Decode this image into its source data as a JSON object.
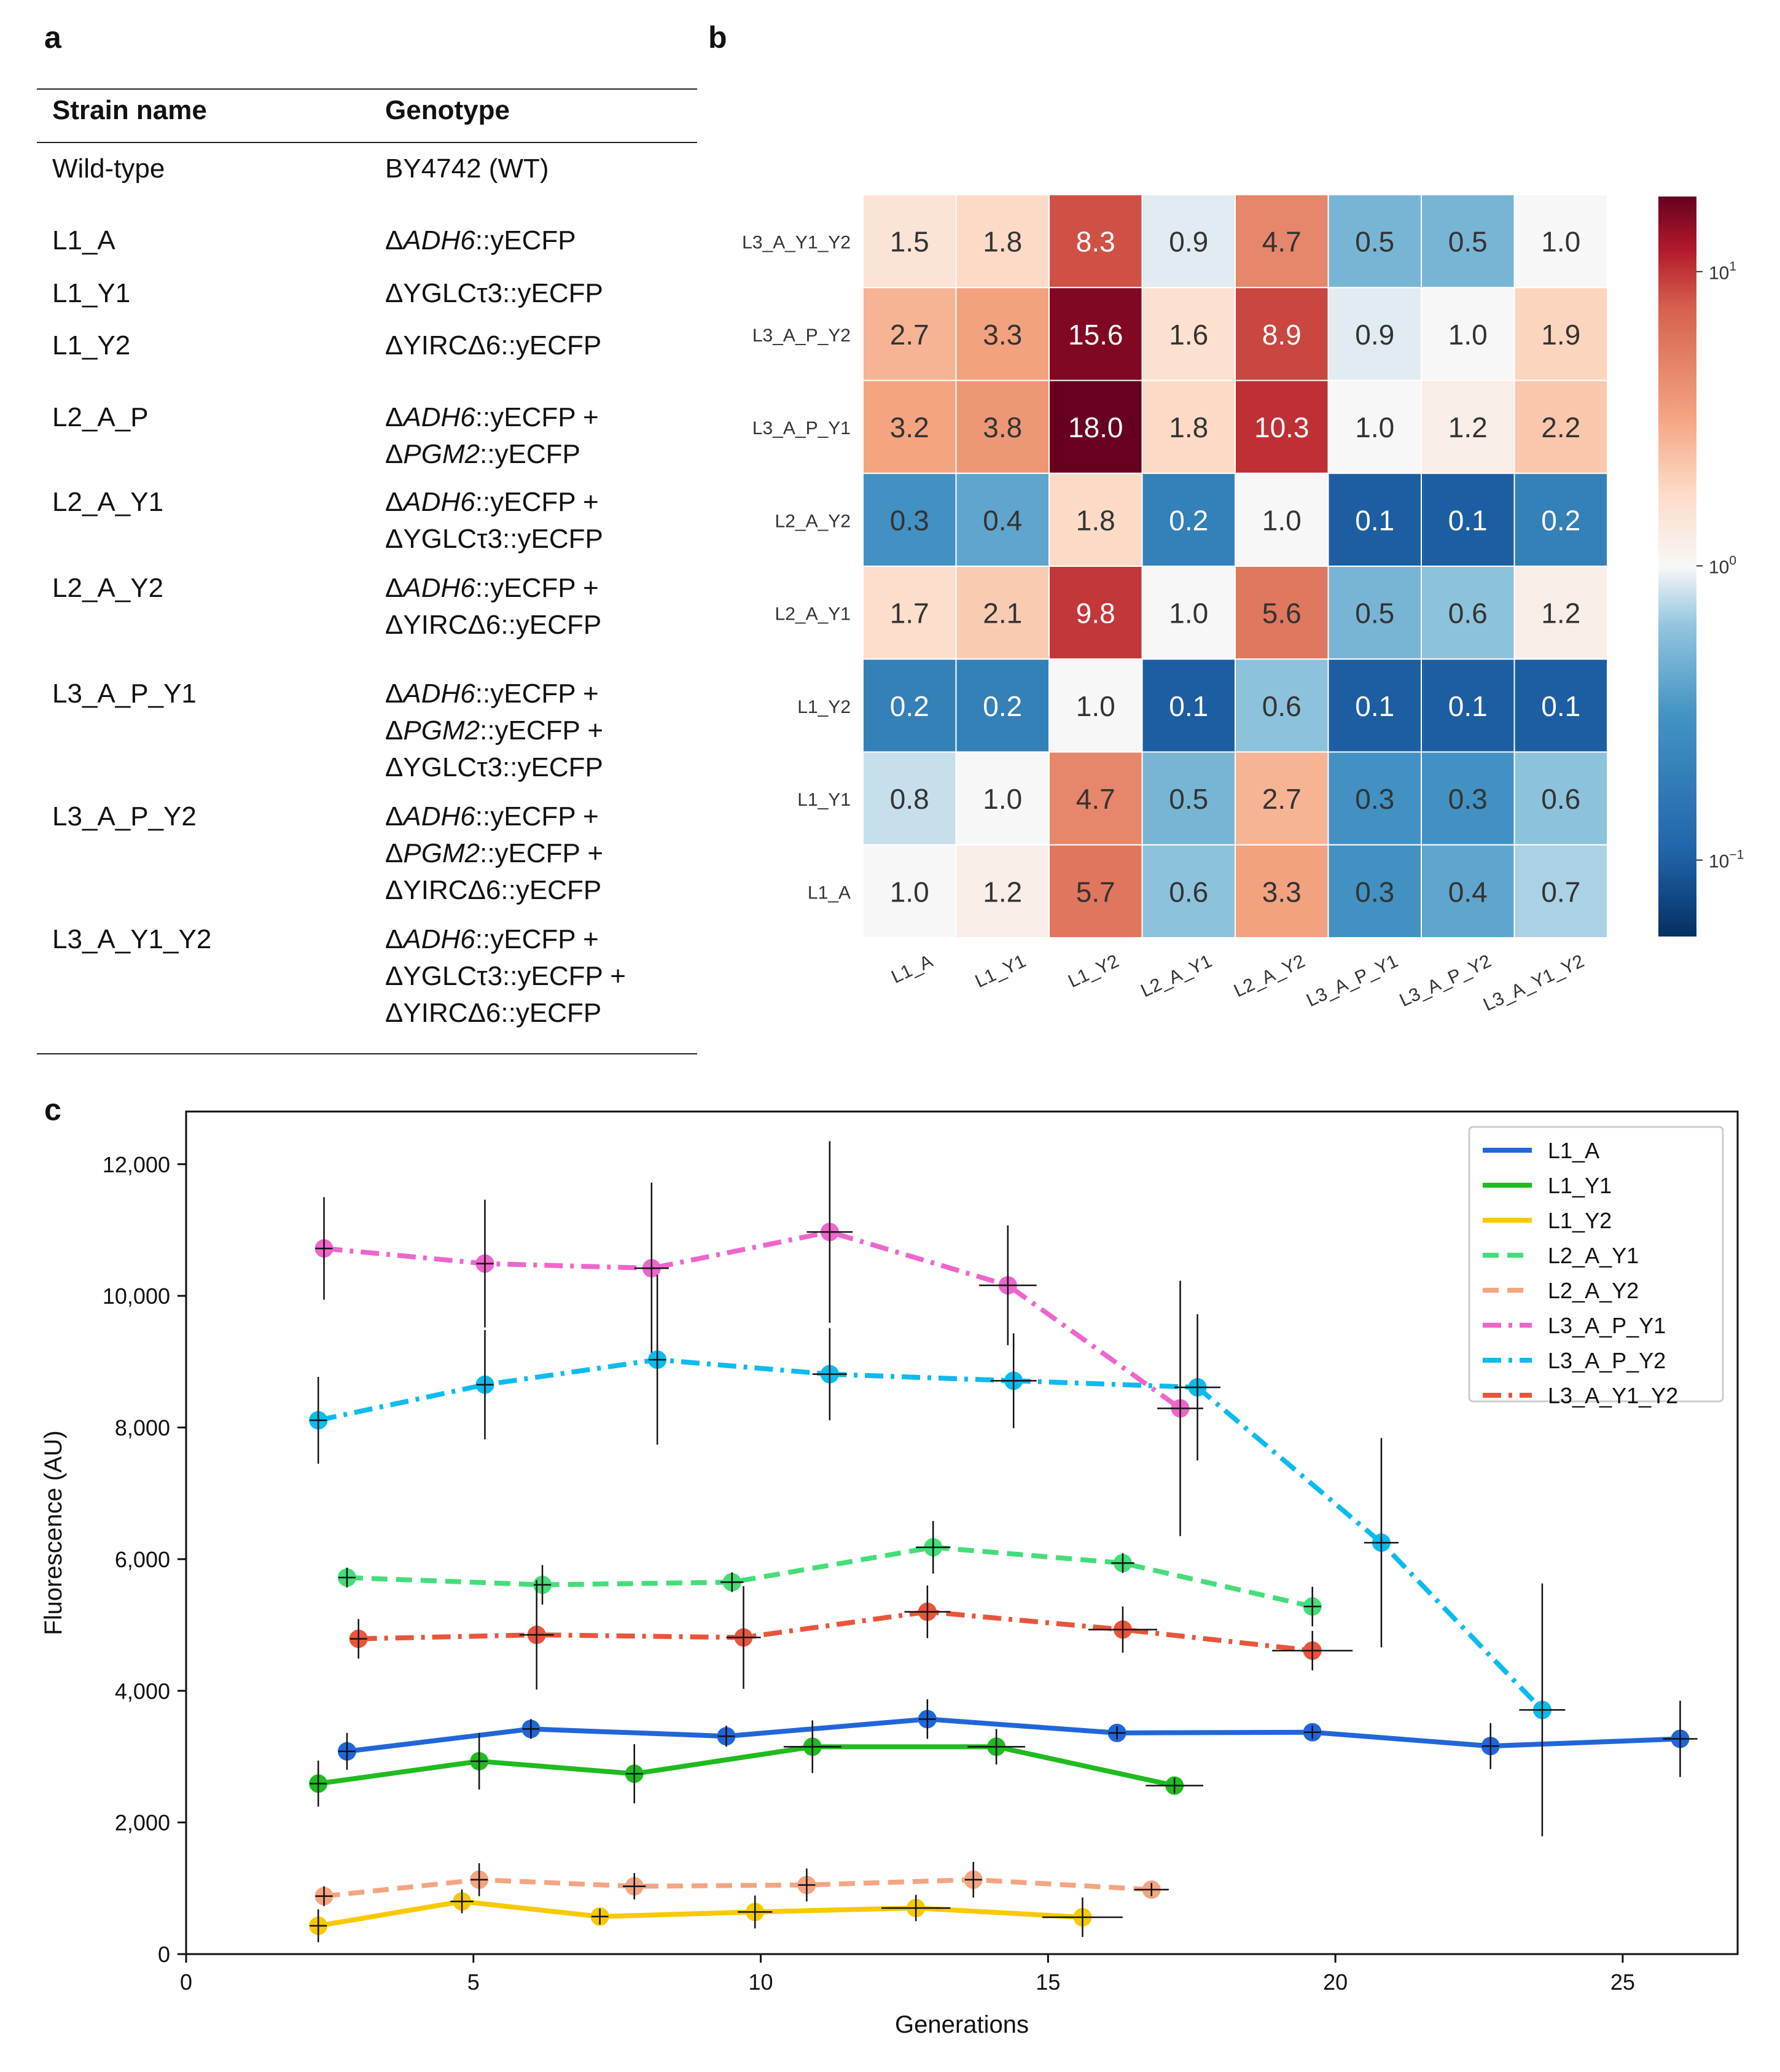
{
  "panels": {
    "a": "a",
    "b": "b",
    "c": "c"
  },
  "table": {
    "headers": [
      "Strain name",
      "Genotype"
    ],
    "rows": [
      {
        "name": "Wild-type",
        "genotype": [
          [
            {
              "t": "BY4742 (WT)"
            }
          ]
        ]
      },
      {
        "name": "L1_A",
        "genotype": [
          [
            {
              "t": "Δ"
            },
            {
              "t": "ADH6",
              "i": true
            },
            {
              "t": "::yECFP"
            }
          ]
        ]
      },
      {
        "name": "L1_Y1",
        "genotype": [
          [
            {
              "t": "ΔYGLCτ3::yECFP"
            }
          ]
        ]
      },
      {
        "name": "L1_Y2",
        "genotype": [
          [
            {
              "t": "ΔYIRCΔ6::yECFP"
            }
          ]
        ]
      },
      {
        "name": "L2_A_P",
        "genotype": [
          [
            {
              "t": "Δ"
            },
            {
              "t": "ADH6",
              "i": true
            },
            {
              "t": "::yECFP +"
            }
          ],
          [
            {
              "t": "Δ"
            },
            {
              "t": "PGM2",
              "i": true
            },
            {
              "t": "::yECFP"
            }
          ]
        ]
      },
      {
        "name": "L2_A_Y1",
        "genotype": [
          [
            {
              "t": "Δ"
            },
            {
              "t": "ADH6",
              "i": true
            },
            {
              "t": "::yECFP +"
            }
          ],
          [
            {
              "t": "ΔYGLCτ3::yECFP"
            }
          ]
        ]
      },
      {
        "name": "L2_A_Y2",
        "genotype": [
          [
            {
              "t": "Δ"
            },
            {
              "t": "ADH6",
              "i": true
            },
            {
              "t": "::yECFP +"
            }
          ],
          [
            {
              "t": "ΔYIRCΔ6::yECFP"
            }
          ]
        ]
      },
      {
        "name": "L3_A_P_Y1",
        "genotype": [
          [
            {
              "t": "Δ"
            },
            {
              "t": "ADH6",
              "i": true
            },
            {
              "t": "::yECFP +"
            }
          ],
          [
            {
              "t": "Δ"
            },
            {
              "t": "PGM2",
              "i": true
            },
            {
              "t": "::yECFP +"
            }
          ],
          [
            {
              "t": "ΔYGLCτ3::yECFP"
            }
          ]
        ]
      },
      {
        "name": "L3_A_P_Y2",
        "genotype": [
          [
            {
              "t": "Δ"
            },
            {
              "t": "ADH6",
              "i": true
            },
            {
              "t": "::yECFP +"
            }
          ],
          [
            {
              "t": "Δ"
            },
            {
              "t": "PGM2",
              "i": true
            },
            {
              "t": "::yECFP +"
            }
          ],
          [
            {
              "t": "ΔYIRCΔ6::yECFP"
            }
          ]
        ]
      },
      {
        "name": "L3_A_Y1_Y2",
        "genotype": [
          [
            {
              "t": "Δ"
            },
            {
              "t": "ADH6",
              "i": true
            },
            {
              "t": "::yECFP +"
            }
          ],
          [
            {
              "t": "ΔYGLCτ3::yECFP +"
            }
          ],
          [
            {
              "t": "ΔYIRCΔ6::yECFP"
            }
          ]
        ]
      }
    ]
  },
  "chart_data": [
    {
      "type": "heatmap",
      "row_labels": [
        "L3_A_Y1_Y2",
        "L3_A_P_Y2",
        "L3_A_P_Y1",
        "L2_A_Y2",
        "L2_A_Y1",
        "L1_Y2",
        "L1_Y1",
        "L1_A"
      ],
      "col_labels": [
        "L1_A",
        "L1_Y1",
        "L1_Y2",
        "L2_A_Y1",
        "L2_A_Y2",
        "L3_A_P_Y1",
        "L3_A_P_Y2",
        "L3_A_Y1_Y2"
      ],
      "values": [
        [
          1.5,
          1.8,
          8.3,
          0.9,
          4.7,
          0.5,
          0.5,
          1.0
        ],
        [
          2.7,
          3.3,
          15.6,
          1.6,
          8.9,
          0.9,
          1.0,
          1.9
        ],
        [
          3.2,
          3.8,
          18.0,
          1.8,
          10.3,
          1.0,
          1.2,
          2.2
        ],
        [
          0.3,
          0.4,
          1.8,
          0.2,
          1.0,
          0.1,
          0.1,
          0.2
        ],
        [
          1.7,
          2.1,
          9.8,
          1.0,
          5.6,
          0.5,
          0.6,
          1.2
        ],
        [
          0.2,
          0.2,
          1.0,
          0.1,
          0.6,
          0.1,
          0.1,
          0.1
        ],
        [
          0.8,
          1.0,
          4.7,
          0.5,
          2.7,
          0.3,
          0.3,
          0.6
        ],
        [
          1.0,
          1.2,
          5.7,
          0.6,
          3.3,
          0.3,
          0.4,
          0.7
        ]
      ],
      "colorbar": {
        "scale": "log",
        "range": [
          0.055,
          18.0
        ],
        "ticks": [
          {
            "value": 10,
            "base": "10",
            "exp": "1"
          },
          {
            "value": 1,
            "base": "10",
            "exp": "0"
          },
          {
            "value": 0.1,
            "base": "10",
            "exp": "−1"
          }
        ]
      }
    },
    {
      "type": "line",
      "xlabel": "Generations",
      "ylabel": "Fluorescence (AU)",
      "xlim": [
        0,
        27
      ],
      "ylim": [
        0,
        12800
      ],
      "xticks": [
        0,
        5,
        10,
        15,
        20,
        25
      ],
      "xtick_labels": [
        "0",
        "5",
        "10",
        "15",
        "20",
        "25"
      ],
      "yticks": [
        0,
        2000,
        4000,
        6000,
        8000,
        10000,
        12000
      ],
      "ytick_labels": [
        "0",
        "2,000",
        "4,000",
        "6,000",
        "8,000",
        "10,000",
        "12,000"
      ],
      "legend_position": "top-right",
      "series": [
        {
          "name": "L1_A",
          "color": "#2166d8",
          "dash": "solid",
          "x": [
            2.8,
            6.0,
            9.4,
            12.9,
            16.2,
            19.6,
            22.7,
            26.0
          ],
          "y": [
            3080,
            3420,
            3310,
            3570,
            3360,
            3370,
            3160,
            3270
          ],
          "yerr": [
            280,
            150,
            160,
            300,
            100,
            100,
            350,
            580
          ],
          "xerr": [
            0,
            0,
            0,
            0,
            0,
            0,
            0,
            0.3
          ]
        },
        {
          "name": "L1_Y1",
          "color": "#1fbb1f",
          "dash": "solid",
          "x": [
            2.3,
            5.1,
            7.8,
            10.9,
            14.1,
            17.2
          ],
          "y": [
            2590,
            2930,
            2740,
            3150,
            3150,
            2560
          ],
          "yerr": [
            350,
            430,
            450,
            400,
            270,
            120
          ],
          "xerr": [
            0,
            0,
            0,
            0.5,
            0.5,
            0.5
          ]
        },
        {
          "name": "L1_Y2",
          "color": "#f7c900",
          "dash": "solid",
          "x": [
            2.3,
            4.8,
            7.2,
            9.9,
            12.7,
            15.6
          ],
          "y": [
            430,
            800,
            570,
            640,
            700,
            560
          ],
          "yerr": [
            250,
            180,
            120,
            250,
            200,
            300
          ],
          "xerr": [
            0,
            0.2,
            0,
            0.3,
            0.6,
            0.7
          ]
        },
        {
          "name": "L2_A_Y1",
          "color": "#44dd7a",
          "dash": "dashed",
          "x": [
            2.8,
            6.2,
            9.5,
            13.0,
            16.3,
            19.6
          ],
          "y": [
            5720,
            5610,
            5650,
            6180,
            5940,
            5280
          ],
          "yerr": [
            150,
            300,
            150,
            400,
            150,
            300
          ],
          "xerr": [
            0,
            0,
            0.2,
            0.3,
            0.2,
            0
          ]
        },
        {
          "name": "L2_A_Y2",
          "color": "#f4a582",
          "dash": "dashed",
          "x": [
            2.4,
            5.1,
            7.8,
            10.8,
            13.7,
            16.8
          ],
          "y": [
            880,
            1130,
            1030,
            1050,
            1130,
            980
          ],
          "yerr": [
            150,
            250,
            200,
            250,
            270,
            100
          ],
          "xerr": [
            0,
            0,
            0.2,
            0,
            0,
            0.3
          ]
        },
        {
          "name": "L3_A_P_Y1",
          "color": "#ee66cc",
          "dash": "dashdot",
          "x": [
            2.4,
            5.2,
            8.1,
            11.2,
            14.3,
            17.3
          ],
          "y": [
            10720,
            10490,
            10420,
            10970,
            10160,
            8290
          ],
          "yerr": [
            780,
            970,
            1300,
            1380,
            910,
            1940
          ],
          "xerr": [
            0,
            0,
            0.3,
            0.4,
            0.5,
            0.4
          ]
        },
        {
          "name": "L3_A_P_Y2",
          "color": "#0abbee",
          "dash": "dashdot",
          "x": [
            2.3,
            5.2,
            8.2,
            11.2,
            14.4,
            17.6,
            20.8,
            23.6
          ],
          "y": [
            8110,
            8650,
            9030,
            8810,
            8710,
            8610,
            6250,
            3710
          ],
          "yerr": [
            660,
            830,
            1290,
            700,
            720,
            1110,
            1590,
            1920
          ],
          "xerr": [
            0,
            0,
            0,
            0.3,
            0.4,
            0.4,
            0.3,
            0.4
          ]
        },
        {
          "name": "L3_A_Y1_Y2",
          "color": "#e8553a",
          "dash": "dashdot",
          "x": [
            3.0,
            6.1,
            9.7,
            12.9,
            16.3,
            19.6
          ],
          "y": [
            4790,
            4850,
            4810,
            5200,
            4930,
            4610
          ],
          "yerr": [
            300,
            830,
            780,
            400,
            350,
            300
          ],
          "xerr": [
            0,
            0.3,
            0.3,
            0.4,
            0.6,
            0.7
          ]
        }
      ]
    }
  ]
}
